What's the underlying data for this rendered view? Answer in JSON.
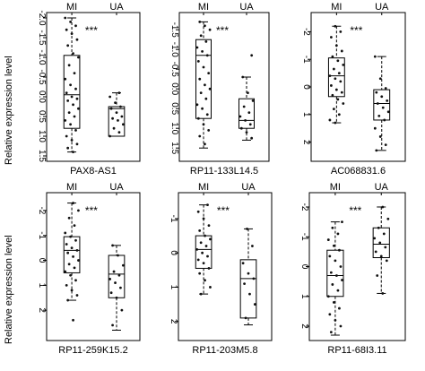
{
  "figure": {
    "ylabel": "Relative expression level"
  },
  "chart_data": [
    {
      "type": "box",
      "title": "PAX8-AS1",
      "categories": [
        "MI",
        "UA"
      ],
      "significance": "***",
      "y_ticks": [
        "-2.0",
        "-1.5",
        "-1.0",
        "-0.5",
        "0.0",
        "0.5",
        "1.0",
        "1.5"
      ],
      "ylim": [
        -2.0,
        1.5
      ],
      "inverted": true,
      "boxes": [
        {
          "name": "MI",
          "whisker_low": -2.0,
          "q1": -1.05,
          "median": -0.05,
          "q3": 0.8,
          "whisker_high": 1.4
        },
        {
          "name": "UA",
          "whisker_low": -0.1,
          "q1": 0.25,
          "median": 0.3,
          "q3": 1.0,
          "whisker_high": 1.0
        }
      ],
      "points": [
        {
          "group": "MI",
          "values": [
            -2.0,
            -1.9,
            -1.8,
            -1.7,
            -1.6,
            -1.45,
            -1.3,
            -1.1,
            -1.0,
            -0.8,
            -0.6,
            -0.45,
            -0.3,
            -0.2,
            -0.1,
            0.0,
            0.05,
            0.1,
            0.2,
            0.3,
            0.4,
            0.5,
            0.6,
            0.7,
            0.85,
            1.0,
            1.1,
            1.2,
            1.3,
            1.4
          ]
        },
        {
          "group": "UA",
          "values": [
            -0.1,
            0.0,
            0.15,
            0.25,
            0.3,
            0.4,
            0.5,
            0.55,
            0.6,
            0.7,
            0.8,
            0.9,
            1.0
          ]
        }
      ]
    },
    {
      "type": "box",
      "title": "RP11-133L14.5",
      "categories": [
        "MI",
        "UA"
      ],
      "significance": "***",
      "y_ticks": [
        "-1.5",
        "-1.0",
        "-0.5",
        "0.0",
        "0.5",
        "1.0",
        "1.5"
      ],
      "ylim": [
        -1.8,
        1.7
      ],
      "inverted": true,
      "boxes": [
        {
          "name": "MI",
          "whisker_low": -1.7,
          "q1": -1.25,
          "median": -0.85,
          "q3": 0.75,
          "whisker_high": 1.5
        },
        {
          "name": "UA",
          "whisker_low": -0.3,
          "q1": 0.25,
          "median": 0.8,
          "q3": 1.0,
          "whisker_high": 1.3
        }
      ],
      "points": [
        {
          "group": "MI",
          "values": [
            -1.7,
            -1.6,
            -1.5,
            -1.35,
            -1.2,
            -1.05,
            -0.95,
            -0.85,
            -0.7,
            -0.55,
            -0.4,
            -0.25,
            -0.1,
            0.0,
            0.1,
            0.25,
            0.4,
            0.5,
            0.65,
            0.75,
            0.9,
            1.05,
            1.2,
            1.4
          ]
        },
        {
          "group": "UA",
          "values": [
            -0.85,
            -0.3,
            0.1,
            0.3,
            0.45,
            0.6,
            0.7,
            0.8,
            0.9,
            1.0,
            1.1,
            1.25
          ]
        }
      ]
    },
    {
      "type": "box",
      "title": "AC068831.6",
      "categories": [
        "MI",
        "UA"
      ],
      "significance": "***",
      "y_ticks": [
        "-2",
        "-1",
        "0",
        "1",
        "2"
      ],
      "ylim": [
        -2.5,
        2.5
      ],
      "inverted": true,
      "boxes": [
        {
          "name": "MI",
          "whisker_low": -2.2,
          "q1": -1.05,
          "median": -0.4,
          "q3": 0.35,
          "whisker_high": 1.3
        },
        {
          "name": "UA",
          "whisker_low": -1.1,
          "q1": 0.1,
          "median": 0.6,
          "q3": 1.2,
          "whisker_high": 2.3
        }
      ],
      "points": [
        {
          "group": "MI",
          "values": [
            -2.2,
            -2.0,
            -1.8,
            -1.5,
            -1.3,
            -1.1,
            -0.95,
            -0.8,
            -0.65,
            -0.5,
            -0.4,
            -0.3,
            -0.2,
            -0.05,
            0.1,
            0.2,
            0.3,
            0.45,
            0.6,
            0.8,
            1.0,
            1.2,
            1.3
          ]
        },
        {
          "group": "UA",
          "values": [
            -1.1,
            -0.3,
            0.05,
            0.2,
            0.35,
            0.5,
            0.6,
            0.75,
            0.9,
            1.05,
            1.2,
            1.5,
            1.8,
            2.1,
            2.3
          ]
        }
      ]
    },
    {
      "type": "box",
      "title": "RP11-259K15.2",
      "categories": [
        "MI",
        "UA"
      ],
      "significance": "***",
      "y_ticks": [
        "-2",
        "-1",
        "0",
        "1",
        "2"
      ],
      "ylim": [
        -2.5,
        3.0
      ],
      "inverted": true,
      "boxes": [
        {
          "name": "MI",
          "whisker_low": -2.3,
          "q1": -0.95,
          "median": -0.4,
          "q3": 0.5,
          "whisker_high": 1.6
        },
        {
          "name": "UA",
          "whisker_low": -0.6,
          "q1": -0.2,
          "median": 0.55,
          "q3": 1.5,
          "whisker_high": 2.8
        }
      ],
      "points": [
        {
          "group": "MI",
          "values": [
            -2.3,
            -2.0,
            -1.7,
            -1.4,
            -1.1,
            -0.95,
            -0.8,
            -0.65,
            -0.5,
            -0.4,
            -0.3,
            -0.15,
            0.0,
            0.15,
            0.3,
            0.45,
            0.6,
            0.8,
            1.0,
            1.2,
            1.4,
            1.6,
            2.4
          ]
        },
        {
          "group": "UA",
          "values": [
            -0.6,
            -0.2,
            0.2,
            0.45,
            0.6,
            0.75,
            0.9,
            1.1,
            1.3,
            1.5,
            2.0,
            2.6
          ]
        }
      ]
    },
    {
      "type": "box",
      "title": "RP11-203M5.8",
      "categories": [
        "MI",
        "UA"
      ],
      "significance": "***",
      "y_ticks": [
        "-1",
        "0",
        "1",
        "2"
      ],
      "ylim": [
        -1.6,
        2.4
      ],
      "inverted": true,
      "boxes": [
        {
          "name": "MI",
          "whisker_low": -1.4,
          "q1": -0.5,
          "median": -0.1,
          "q3": 0.45,
          "whisker_high": 1.2
        },
        {
          "name": "UA",
          "whisker_low": -0.7,
          "q1": 0.2,
          "median": 0.75,
          "q3": 1.9,
          "whisker_high": 2.1
        }
      ],
      "points": [
        {
          "group": "MI",
          "values": [
            -1.4,
            -1.2,
            -1.0,
            -0.8,
            -0.65,
            -0.5,
            -0.4,
            -0.3,
            -0.2,
            -0.1,
            0.0,
            0.1,
            0.2,
            0.3,
            0.45,
            0.6,
            0.8,
            1.0,
            1.2
          ]
        },
        {
          "group": "UA",
          "values": [
            -0.7,
            -0.2,
            0.3,
            0.6,
            0.75,
            0.9,
            1.2,
            1.5,
            1.9
          ]
        }
      ]
    },
    {
      "type": "box",
      "title": "RP11-68I3.11",
      "categories": [
        "MI",
        "UA"
      ],
      "significance": "***",
      "y_ticks": [
        "-2",
        "-1",
        "0",
        "1",
        "2"
      ],
      "ylim": [
        -2.3,
        2.3
      ],
      "inverted": true,
      "boxes": [
        {
          "name": "MI",
          "whisker_low": -1.5,
          "q1": -0.55,
          "median": 0.3,
          "q3": 1.0,
          "whisker_high": 2.3
        },
        {
          "name": "UA",
          "whisker_low": -2.0,
          "q1": -1.3,
          "median": -0.75,
          "q3": -0.3,
          "whisker_high": 0.9
        }
      ],
      "points": [
        {
          "group": "MI",
          "values": [
            -1.5,
            -1.3,
            -1.1,
            -0.9,
            -0.7,
            -0.55,
            -0.35,
            -0.2,
            0.0,
            0.2,
            0.3,
            0.45,
            0.6,
            0.8,
            1.0,
            1.2,
            1.4,
            1.6,
            1.8,
            2.0,
            2.2
          ]
        },
        {
          "group": "UA",
          "values": [
            -2.0,
            -1.6,
            -1.3,
            -1.1,
            -0.95,
            -0.8,
            -0.65,
            -0.5,
            -0.35,
            -0.2,
            0.3,
            0.9
          ]
        }
      ]
    }
  ]
}
